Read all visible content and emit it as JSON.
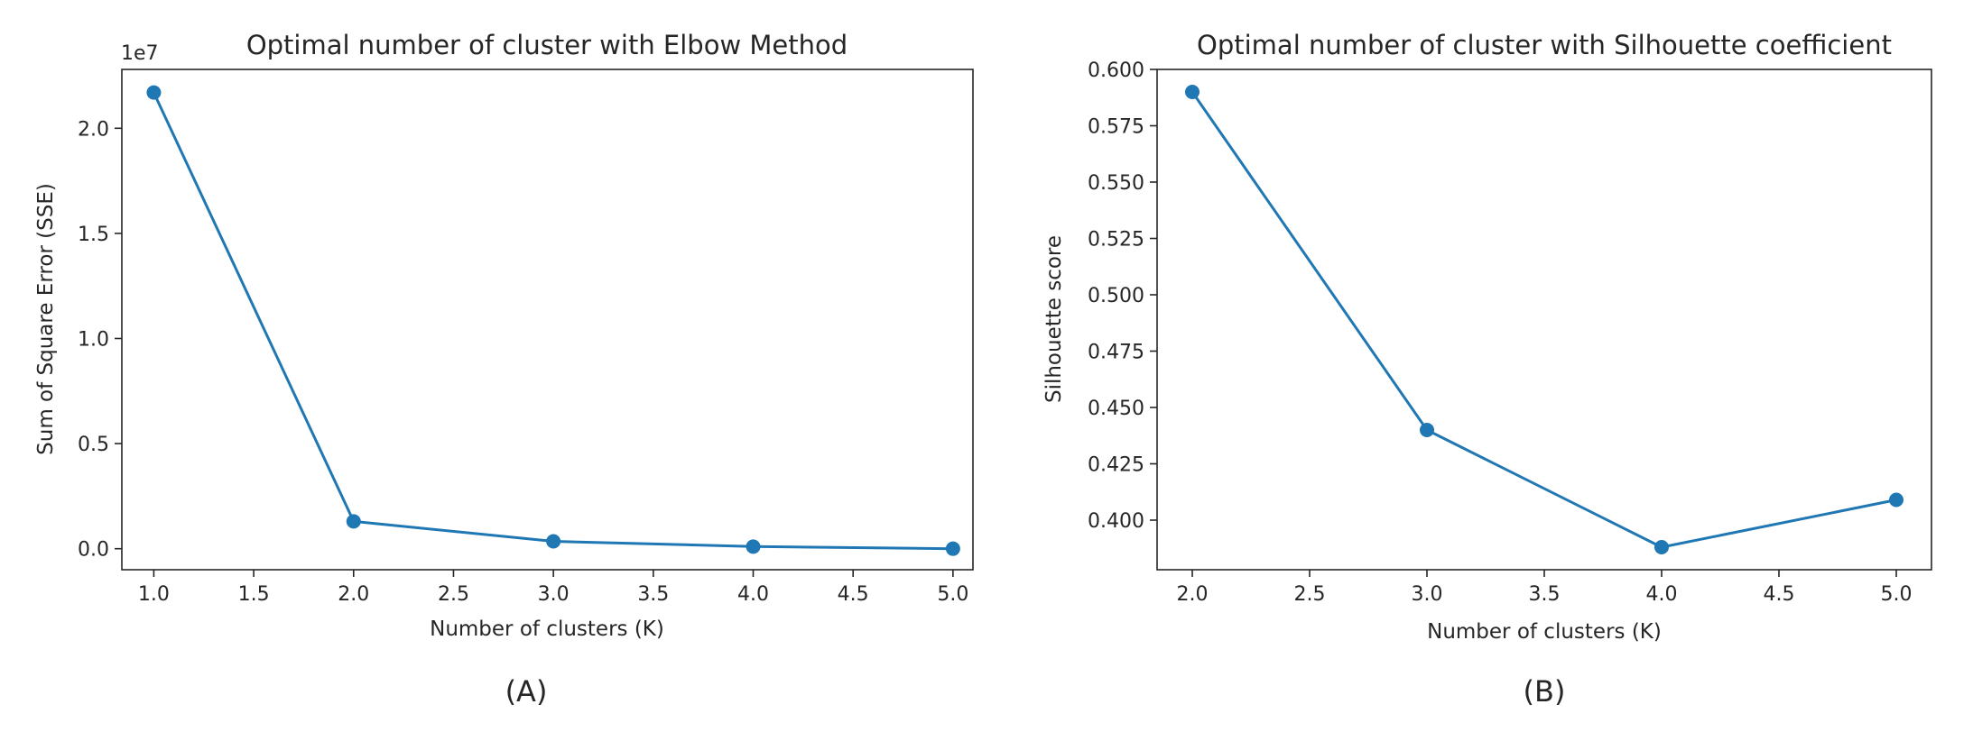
{
  "chart_data": [
    {
      "type": "line",
      "title": "Optimal number of cluster with Elbow Method",
      "xlabel": "Number of clusters (K)",
      "ylabel": "Sum of Square Error (SSE)",
      "y_offset_label": "1e7",
      "panel_label": "(A)",
      "xlim": [
        0.84,
        5.1
      ],
      "ylim": [
        -0.1,
        2.28
      ],
      "x_ticks": [
        1.0,
        1.5,
        2.0,
        2.5,
        3.0,
        3.5,
        4.0,
        4.5,
        5.0
      ],
      "x_tick_labels": [
        "1.0",
        "1.5",
        "2.0",
        "2.5",
        "3.0",
        "3.5",
        "4.0",
        "4.5",
        "5.0"
      ],
      "y_ticks": [
        0.0,
        0.5,
        1.0,
        1.5,
        2.0
      ],
      "y_tick_labels": [
        "0.0",
        "0.5",
        "1.0",
        "1.5",
        "2.0"
      ],
      "grid": false,
      "color": "#1f77b4",
      "x": [
        1,
        2,
        3,
        4,
        5
      ],
      "y": [
        2.17,
        0.13,
        0.035,
        0.01,
        0.0
      ]
    },
    {
      "type": "line",
      "title": "Optimal number of cluster with Silhouette coefficient",
      "xlabel": "Number of clusters (K)",
      "ylabel": "Silhouette score",
      "y_offset_label": "",
      "panel_label": "(B)",
      "xlim": [
        1.85,
        5.15
      ],
      "ylim": [
        0.378,
        0.6
      ],
      "x_ticks": [
        2.0,
        2.5,
        3.0,
        3.5,
        4.0,
        4.5,
        5.0
      ],
      "x_tick_labels": [
        "2.0",
        "2.5",
        "3.0",
        "3.5",
        "4.0",
        "4.5",
        "5.0"
      ],
      "y_ticks": [
        0.4,
        0.425,
        0.45,
        0.475,
        0.5,
        0.525,
        0.55,
        0.575,
        0.6
      ],
      "y_tick_labels": [
        "0.400",
        "0.425",
        "0.450",
        "0.475",
        "0.500",
        "0.525",
        "0.550",
        "0.575",
        "0.600"
      ],
      "grid": false,
      "color": "#1f77b4",
      "x": [
        2,
        3,
        4,
        5
      ],
      "y": [
        0.59,
        0.44,
        0.388,
        0.409
      ]
    }
  ]
}
